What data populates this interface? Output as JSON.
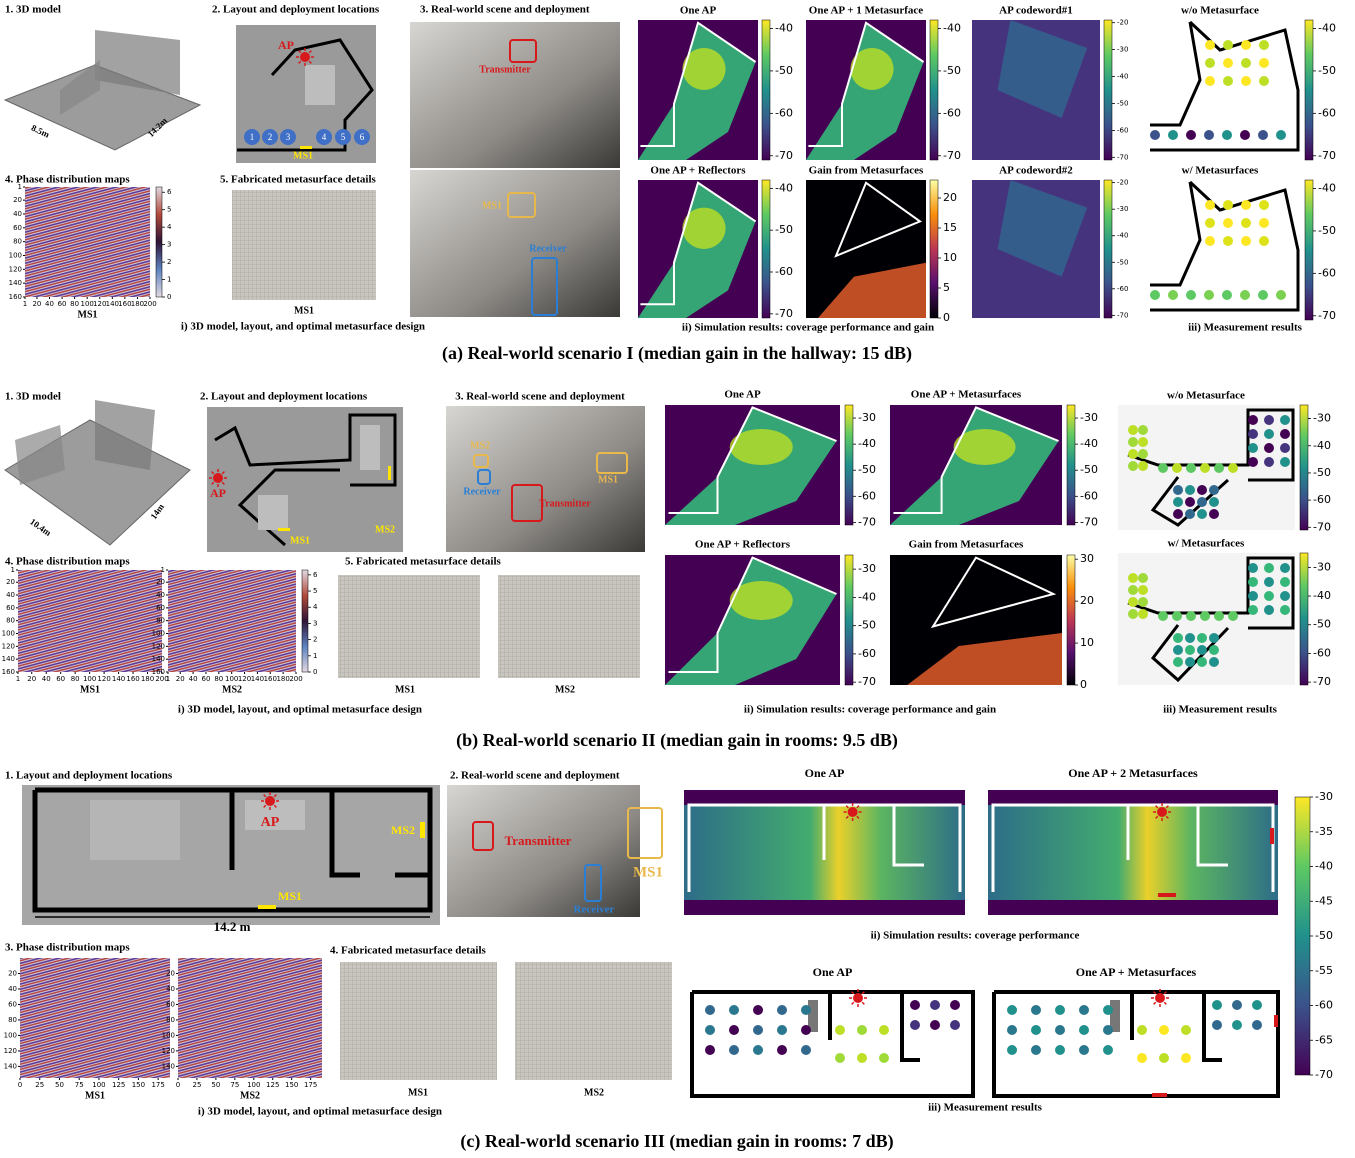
{
  "a": {
    "model": {
      "title": "1. 3D model",
      "dim1": "8.5m",
      "dim2": "14.2m"
    },
    "layout": {
      "title": "2. Layout and deployment locations",
      "ap": "AP",
      "points": [
        "1",
        "2",
        "3",
        "4",
        "5",
        "6"
      ],
      "ms": "MS1"
    },
    "scene": {
      "title": "3. Real-world scene and deployment",
      "tx": "Transmitter",
      "ms": "MS1",
      "rx": "Receiver"
    },
    "phase": {
      "title": "4. Phase distribution maps",
      "labels": [
        "MS1"
      ],
      "xlim": [
        1,
        200
      ],
      "xticks": [
        1,
        20,
        40,
        60,
        80,
        100,
        120,
        140,
        160,
        180,
        200
      ],
      "ylim": [
        1,
        160
      ],
      "yticks": [
        1,
        20,
        40,
        60,
        80,
        100,
        120,
        140,
        160
      ],
      "colormap": "twilight",
      "clim": [
        0,
        6.3
      ],
      "cticks": [
        0,
        1,
        2,
        3,
        4,
        5,
        6
      ]
    },
    "fab": {
      "title": "5. Fabricated metasurface details",
      "labels": [
        "MS1"
      ]
    },
    "design_caption": "i) 3D model, layout, and optimal metasurface design",
    "sim": {
      "panels": [
        {
          "title": "One AP",
          "colormap": "viridis",
          "clim": [
            -71,
            -38
          ],
          "cticks": [
            -40,
            -50,
            -60,
            -70
          ]
        },
        {
          "title": "One AP + 1 Metasurface",
          "colormap": "viridis",
          "clim": [
            -71,
            -38
          ],
          "cticks": [
            -40,
            -50,
            -60,
            -70
          ]
        },
        {
          "title": "AP codeword#1",
          "colormap": "viridis",
          "clim": [
            -71,
            -19
          ],
          "cticks": [
            -20,
            -30,
            -40,
            -50,
            -60,
            -70
          ]
        },
        {
          "title": "One AP + Reflectors",
          "colormap": "viridis",
          "clim": [
            -71,
            -38
          ],
          "cticks": [
            -40,
            -50,
            -60,
            -70
          ]
        },
        {
          "title": "Gain from Metasurfaces",
          "colormap": "inferno",
          "clim": [
            0,
            23
          ],
          "cticks": [
            20,
            15,
            10,
            5,
            0
          ]
        },
        {
          "title": "AP codeword#2",
          "colormap": "viridis",
          "clim": [
            -71,
            -19
          ],
          "cticks": [
            -20,
            -30,
            -40,
            -50,
            -60,
            -70
          ]
        }
      ],
      "caption": "ii) Simulation results: coverage performance and gain"
    },
    "meas": {
      "panels": [
        {
          "title": "w/o Metasurface",
          "colormap": "viridis",
          "clim": [
            -71,
            -38
          ],
          "cticks": [
            -40,
            -50,
            -60,
            -70
          ]
        },
        {
          "title": "w/ Metasurfaces",
          "colormap": "viridis",
          "clim": [
            -71,
            -38
          ],
          "cticks": [
            -40,
            -50,
            -60,
            -70
          ]
        }
      ],
      "caption": "iii) Measurement results"
    },
    "caption": "(a) Real-world scenario I (median gain in the hallway: 15 dB)"
  },
  "b": {
    "model": {
      "title": "1. 3D model",
      "dim1": "10.4m",
      "dim2": "14m"
    },
    "layout": {
      "title": "2. Layout and deployment locations",
      "ap": "AP",
      "ms1": "MS1",
      "ms2": "MS2"
    },
    "scene": {
      "title": "3. Real-world scene and deployment",
      "ms2": "MS2",
      "rx": "Receiver",
      "tx": "Transmitter",
      "ms1": "MS1"
    },
    "phase": {
      "title": "4. Phase distribution maps",
      "labels": [
        "MS1",
        "MS2"
      ],
      "xlim": [
        1,
        200
      ],
      "xticks": [
        1,
        20,
        40,
        60,
        80,
        100,
        120,
        140,
        160,
        180,
        200
      ],
      "ylim": [
        1,
        160
      ],
      "yticks": [
        1,
        20,
        40,
        60,
        80,
        100,
        120,
        140,
        160
      ],
      "colormap": "twilight",
      "clim": [
        0,
        6.3
      ],
      "cticks": [
        0,
        1,
        2,
        3,
        4,
        5,
        6
      ]
    },
    "fab": {
      "title": "5. Fabricated metasurface details",
      "labels": [
        "MS1",
        "MS2"
      ]
    },
    "design_caption": "i) 3D model, layout, and optimal metasurface design",
    "sim": {
      "panels": [
        {
          "title": "One AP",
          "colormap": "viridis",
          "clim": [
            -71,
            -25
          ],
          "cticks": [
            -30,
            -40,
            -50,
            -60,
            -70
          ]
        },
        {
          "title": "One AP + Metasurfaces",
          "colormap": "viridis",
          "clim": [
            -71,
            -25
          ],
          "cticks": [
            -30,
            -40,
            -50,
            -60,
            -70
          ]
        },
        {
          "title": "One AP + Reflectors",
          "colormap": "viridis",
          "clim": [
            -71,
            -25
          ],
          "cticks": [
            -30,
            -40,
            -50,
            -60,
            -70
          ]
        },
        {
          "title": "Gain from Metasurfaces",
          "colormap": "inferno",
          "clim": [
            0,
            31
          ],
          "cticks": [
            30,
            20,
            10,
            0
          ]
        }
      ],
      "caption": "ii) Simulation results: coverage performance and gain"
    },
    "meas": {
      "panels": [
        {
          "title": "w/o Metasurface",
          "colormap": "viridis",
          "clim": [
            -71,
            -25
          ],
          "cticks": [
            -30,
            -40,
            -50,
            -60,
            -70
          ]
        },
        {
          "title": "w/ Metasurfaces",
          "colormap": "viridis",
          "clim": [
            -71,
            -25
          ],
          "cticks": [
            -30,
            -40,
            -50,
            -60,
            -70
          ]
        }
      ],
      "caption": "iii) Measurement results"
    },
    "caption": "(b) Real-world scenario II (median gain in rooms: 9.5 dB)"
  },
  "c": {
    "layout": {
      "title": "1. Layout and deployment locations",
      "ap": "AP",
      "ms2": "MS2",
      "ms1": "MS1",
      "dim": "14.2 m"
    },
    "scene": {
      "title": "2. Real-world scene and deployment",
      "tx": "Transmitter",
      "ms": "MS1",
      "rx": "Receiver"
    },
    "phase": {
      "title": "3. Phase distribution maps",
      "labels": [
        "MS1",
        "MS2"
      ],
      "xlim": [
        0,
        190
      ],
      "xticks": [
        0,
        25,
        50,
        75,
        100,
        125,
        150,
        175
      ],
      "ylim": [
        0,
        155
      ],
      "yticks": [
        20,
        40,
        60,
        80,
        100,
        120,
        140
      ]
    },
    "fab": {
      "title": "4. Fabricated metasurface details",
      "labels": [
        "MS1",
        "MS2"
      ]
    },
    "design_caption": "i) 3D model, layout, and optimal metasurface design",
    "sim": {
      "panels": [
        {
          "title": "One AP"
        },
        {
          "title": "One AP + 2 Metasurfaces"
        }
      ],
      "caption": "ii) Simulation results: coverage performance"
    },
    "meas": {
      "panels": [
        {
          "title": "One AP"
        },
        {
          "title": "One AP + Metasurfaces"
        }
      ],
      "caption": "iii) Measurement results"
    },
    "cbar": {
      "colormap": "viridis",
      "clim": [
        -70,
        -30
      ],
      "cticks": [
        -30,
        -35,
        -40,
        -45,
        -50,
        -55,
        -60,
        -65,
        -70
      ]
    },
    "caption": "(c) Real-world scenario III (median gain in rooms: 7 dB)"
  }
}
